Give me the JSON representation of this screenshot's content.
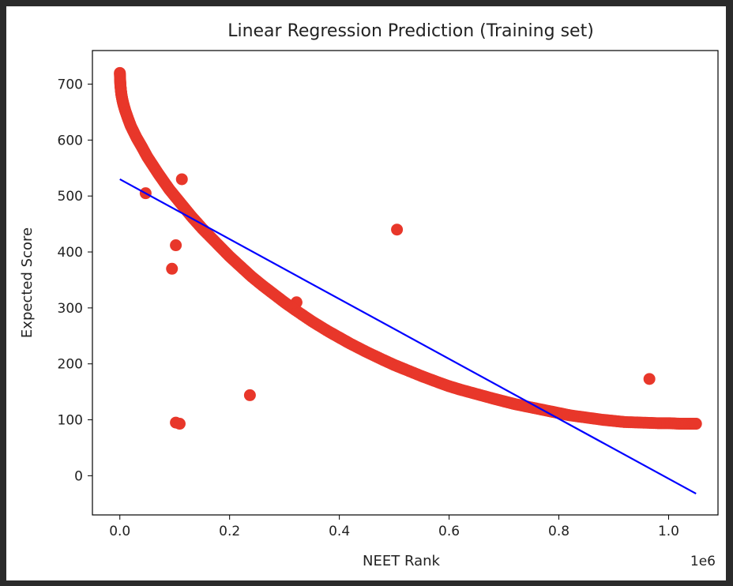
{
  "chart_data": {
    "type": "scatter",
    "title": "Linear Regression Prediction (Training set)",
    "xlabel": "NEET Rank",
    "ylabel": "Expected Score",
    "x_multiplier_label": "1e6",
    "xlim": [
      -0.05,
      1.09
    ],
    "ylim": [
      -70,
      760
    ],
    "xticks": [
      0.0,
      0.2,
      0.4,
      0.6,
      0.8,
      1.0
    ],
    "xtick_labels": [
      "0.0",
      "0.2",
      "0.4",
      "0.6",
      "0.8",
      "1.0"
    ],
    "yticks": [
      0,
      100,
      200,
      300,
      400,
      500,
      600,
      700
    ],
    "ytick_labels": [
      "0",
      "100",
      "200",
      "300",
      "400",
      "500",
      "600",
      "700"
    ],
    "grid": false,
    "legend": "none",
    "series": [
      {
        "kind": "scatter",
        "color": "#e8372a",
        "x": [
          0.0,
          0.0005,
          0.001,
          0.002,
          0.003,
          0.005,
          0.007,
          0.01,
          0.015,
          0.02,
          0.03,
          0.04,
          0.05,
          0.06,
          0.07,
          0.08,
          0.09,
          0.1,
          0.11,
          0.12,
          0.13,
          0.14,
          0.15,
          0.16,
          0.18,
          0.2,
          0.22,
          0.24,
          0.26,
          0.28,
          0.3,
          0.32,
          0.35,
          0.38,
          0.4,
          0.42,
          0.45,
          0.48,
          0.5,
          0.52,
          0.55,
          0.58,
          0.6,
          0.62,
          0.65,
          0.68,
          0.7,
          0.72,
          0.75,
          0.78,
          0.8,
          0.82,
          0.85,
          0.88,
          0.9,
          0.92,
          0.95,
          0.98,
          1.0,
          1.02,
          1.04,
          1.05,
          0.047,
          0.113,
          0.102,
          0.095,
          0.102,
          0.109,
          0.237,
          0.322,
          0.505,
          0.965
        ],
        "y": [
          720,
          708,
          698,
          688,
          680,
          670,
          662,
          652,
          638,
          625,
          605,
          588,
          570,
          555,
          540,
          526,
          512,
          500,
          488,
          476,
          464,
          453,
          442,
          432,
          412,
          392,
          374,
          356,
          340,
          325,
          310,
          296,
          276,
          258,
          247,
          236,
          221,
          207,
          198,
          190,
          178,
          167,
          160,
          154,
          146,
          138,
          133,
          128,
          122,
          116,
          112,
          108,
          104,
          100,
          98,
          96,
          95,
          94,
          94,
          93,
          93,
          93,
          505,
          530,
          412,
          370,
          95,
          93,
          144,
          310,
          440,
          173
        ]
      },
      {
        "kind": "line",
        "color": "#0000ff",
        "x": [
          0.0,
          1.05
        ],
        "y": [
          530,
          -32
        ]
      }
    ]
  }
}
